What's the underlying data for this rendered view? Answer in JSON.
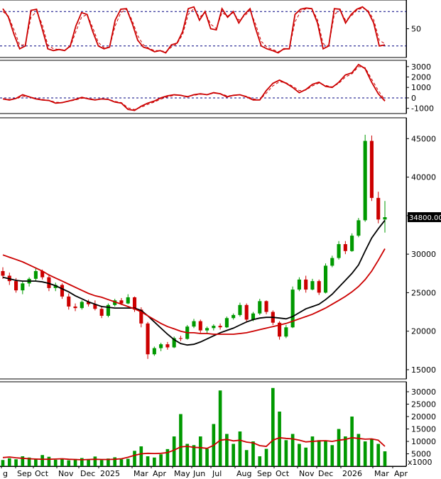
{
  "chart_data": [
    {
      "type": "line",
      "panel": "stochastic-oscillator",
      "title": "",
      "yticks": [
        50
      ],
      "ylim": [
        0,
        100
      ],
      "reference_lines": [
        20,
        80
      ],
      "series": [
        {
          "color": "#cc0000",
          "style": "solid",
          "values": [
            85,
            70,
            40,
            15,
            20,
            82,
            84,
            50,
            15,
            12,
            14,
            12,
            20,
            55,
            78,
            75,
            45,
            20,
            15,
            18,
            65,
            84,
            85,
            60,
            30,
            18,
            15,
            10,
            12,
            8,
            22,
            25,
            45,
            85,
            88,
            65,
            80,
            50,
            48,
            85,
            70,
            80,
            60,
            75,
            85,
            50,
            20,
            15,
            12,
            8,
            15,
            15,
            75,
            84,
            86,
            85,
            60,
            15,
            20,
            85,
            84,
            60,
            75,
            84,
            88,
            80,
            60,
            20,
            22
          ]
        },
        {
          "color": "#cc0000",
          "style": "dashed",
          "values": [
            80,
            72,
            48,
            22,
            22,
            70,
            80,
            58,
            22,
            15,
            14,
            13,
            18,
            45,
            70,
            75,
            52,
            26,
            17,
            18,
            55,
            78,
            84,
            65,
            38,
            22,
            16,
            12,
            12,
            10,
            18,
            24,
            40,
            75,
            85,
            70,
            78,
            58,
            50,
            78,
            72,
            78,
            65,
            72,
            82,
            58,
            28,
            18,
            14,
            10,
            14,
            15,
            62,
            80,
            85,
            85,
            66,
            24,
            20,
            75,
            82,
            65,
            72,
            82,
            86,
            82,
            66,
            30,
            24
          ]
        }
      ]
    },
    {
      "type": "line",
      "panel": "macd",
      "title": "",
      "yticks": [
        3000,
        2000,
        1000,
        0,
        -1000
      ],
      "ylim": [
        -1500,
        3600
      ],
      "reference_lines": [
        0
      ],
      "series": [
        {
          "color": "#cc0000",
          "style": "solid",
          "values": [
            -100,
            -200,
            -50,
            300,
            100,
            -100,
            -200,
            -250,
            -500,
            -450,
            -300,
            -150,
            50,
            -100,
            -200,
            -100,
            -150,
            -400,
            -500,
            -1100,
            -1200,
            -800,
            -500,
            -300,
            0,
            200,
            300,
            250,
            100,
            300,
            400,
            300,
            500,
            400,
            100,
            250,
            300,
            100,
            -200,
            -200,
            700,
            1400,
            1700,
            1400,
            1000,
            500,
            800,
            1300,
            1500,
            1100,
            1000,
            1500,
            2200,
            2400,
            3200,
            2800,
            1500,
            400,
            -300
          ]
        },
        {
          "color": "#cc0000",
          "style": "dashed",
          "values": [
            -80,
            -150,
            -90,
            150,
            120,
            -50,
            -150,
            -220,
            -420,
            -430,
            -330,
            -200,
            -30,
            -60,
            -160,
            -120,
            -140,
            -330,
            -450,
            -950,
            -1120,
            -900,
            -620,
            -400,
            -120,
            100,
            250,
            260,
            150,
            250,
            350,
            320,
            450,
            420,
            200,
            230,
            280,
            150,
            -100,
            -180,
            450,
            1150,
            1550,
            1450,
            1120,
            700,
            750,
            1150,
            1420,
            1200,
            1050,
            1380,
            2000,
            2300,
            3000,
            2900,
            1800,
            700,
            -200
          ]
        }
      ]
    },
    {
      "type": "candlestick",
      "panel": "price",
      "title": "",
      "yticks": [
        45000,
        40000,
        35000,
        30000,
        25000,
        20000,
        15000
      ],
      "ylim": [
        13800,
        47700
      ],
      "last_price_label": "34800.00",
      "candles": [
        [
          27800,
          28300,
          26800,
          27200
        ],
        [
          27200,
          27600,
          26000,
          26500
        ],
        [
          26500,
          26900,
          25000,
          25300
        ],
        [
          25300,
          26500,
          24800,
          26200
        ],
        [
          26200,
          27000,
          25800,
          26800
        ],
        [
          26800,
          28200,
          26500,
          27800
        ],
        [
          27800,
          28000,
          26700,
          27000
        ],
        [
          27000,
          27400,
          25200,
          25600
        ],
        [
          25600,
          26300,
          25200,
          26000
        ],
        [
          26000,
          26200,
          24200,
          24500
        ],
        [
          24500,
          24900,
          22800,
          23200
        ],
        [
          23200,
          23600,
          22600,
          23000
        ],
        [
          23000,
          24000,
          22800,
          23800
        ],
        [
          23800,
          24100,
          23200,
          23500
        ],
        [
          23500,
          24000,
          22700,
          22900
        ],
        [
          22900,
          23300,
          21700,
          22000
        ],
        [
          22000,
          23600,
          21800,
          23400
        ],
        [
          23400,
          24200,
          23200,
          24000
        ],
        [
          24000,
          24300,
          23400,
          23600
        ],
        [
          23600,
          24800,
          23500,
          24400
        ],
        [
          24400,
          24500,
          22500,
          22800
        ],
        [
          22800,
          23100,
          20500,
          21000
        ],
        [
          21000,
          21200,
          16400,
          17000
        ],
        [
          17000,
          18000,
          16800,
          17800
        ],
        [
          17800,
          18500,
          17400,
          18300
        ],
        [
          18300,
          18600,
          17600,
          17900
        ],
        [
          17900,
          19300,
          17800,
          19100
        ],
        [
          19100,
          19400,
          18700,
          19000
        ],
        [
          19000,
          20800,
          18900,
          20600
        ],
        [
          20600,
          21600,
          20400,
          21300
        ],
        [
          21300,
          21500,
          19800,
          20100
        ],
        [
          20100,
          20600,
          19700,
          20400
        ],
        [
          20400,
          20900,
          20100,
          20700
        ],
        [
          20700,
          21000,
          20200,
          20500
        ],
        [
          20500,
          21900,
          20400,
          21700
        ],
        [
          21700,
          22300,
          21500,
          22100
        ],
        [
          22100,
          23700,
          21900,
          23400
        ],
        [
          23400,
          23600,
          21200,
          21500
        ],
        [
          21500,
          22500,
          21300,
          22300
        ],
        [
          22300,
          24200,
          22100,
          23900
        ],
        [
          23900,
          24000,
          22200,
          22500
        ],
        [
          22500,
          22700,
          20800,
          21100
        ],
        [
          21100,
          21300,
          18900,
          19300
        ],
        [
          19300,
          20800,
          19100,
          20500
        ],
        [
          20500,
          25800,
          20400,
          25400
        ],
        [
          25400,
          27000,
          25200,
          26700
        ],
        [
          26700,
          27200,
          25000,
          25400
        ],
        [
          25400,
          26800,
          25300,
          26500
        ],
        [
          26500,
          26700,
          24700,
          25000
        ],
        [
          25000,
          28800,
          24900,
          28500
        ],
        [
          28500,
          29800,
          28300,
          29500
        ],
        [
          29500,
          31700,
          29300,
          31300
        ],
        [
          31300,
          31700,
          30000,
          30400
        ],
        [
          30400,
          32700,
          30300,
          32400
        ],
        [
          32400,
          34700,
          32200,
          34400
        ],
        [
          34400,
          45500,
          34200,
          44700
        ],
        [
          44700,
          45400,
          36900,
          37300
        ],
        [
          37300,
          38100,
          34000,
          34500
        ],
        [
          34500,
          36900,
          32800,
          34800
        ]
      ],
      "moving_averages": [
        {
          "color": "#000000",
          "values": [
            27000,
            26800,
            26600,
            26500,
            26500,
            26500,
            26400,
            26200,
            25900,
            25500,
            25100,
            24600,
            24200,
            23800,
            23500,
            23200,
            23100,
            23000,
            23000,
            23000,
            23000,
            22700,
            22000,
            21200,
            20400,
            19600,
            18900,
            18400,
            18200,
            18300,
            18600,
            19000,
            19400,
            19800,
            20100,
            20400,
            20800,
            21200,
            21500,
            21700,
            21800,
            21800,
            21700,
            21600,
            21900,
            22400,
            22900,
            23200,
            23500,
            24100,
            24800,
            25700,
            26600,
            27500,
            28600,
            30400,
            32100,
            33300,
            34400
          ]
        },
        {
          "color": "#cc0000",
          "values": [
            29900,
            29600,
            29300,
            29000,
            28600,
            28200,
            27800,
            27300,
            26900,
            26500,
            26100,
            25700,
            25300,
            24900,
            24600,
            24400,
            24100,
            23800,
            23500,
            23200,
            22900,
            22500,
            22000,
            21500,
            21000,
            20600,
            20300,
            20000,
            19800,
            19800,
            19700,
            19700,
            19600,
            19600,
            19600,
            19600,
            19700,
            19800,
            20000,
            20200,
            20400,
            20600,
            20800,
            21000,
            21300,
            21600,
            21900,
            22200,
            22600,
            23000,
            23500,
            24000,
            24500,
            25100,
            25800,
            26700,
            27800,
            29200,
            30700
          ]
        }
      ]
    },
    {
      "type": "bar",
      "panel": "volume",
      "title": "",
      "ylabel": "x1000",
      "yticks": [
        30000,
        25000,
        20000,
        15000,
        10000,
        5000
      ],
      "ylim": [
        0,
        34000
      ],
      "values": [
        2500,
        3200,
        2800,
        4000,
        3500,
        3000,
        4500,
        3800,
        2600,
        3100,
        2400,
        2900,
        3300,
        2700,
        3900,
        2500,
        3100,
        3600,
        2800,
        3000,
        6200,
        8000,
        4000,
        3500,
        4800,
        6900,
        12000,
        21000,
        9000,
        8500,
        12000,
        7000,
        17000,
        30500,
        13000,
        9000,
        14000,
        6500,
        10000,
        4000,
        7000,
        31500,
        22000,
        10500,
        13000,
        9000,
        7500,
        12000,
        10500,
        10000,
        8500,
        15000,
        12000,
        20000,
        13000,
        10000,
        11000,
        9000,
        6000
      ],
      "ma_values": [
        3500,
        3700,
        3400,
        3200,
        3000,
        2900,
        2800,
        2800,
        2900,
        3000,
        2800,
        2700,
        2600,
        2700,
        2800,
        2700,
        2700,
        2800,
        3000,
        3600,
        4400,
        5000,
        5200,
        5100,
        5200,
        5500,
        6500,
        7800,
        8000,
        7600,
        7500,
        7200,
        8400,
        10500,
        10800,
        10200,
        10500,
        9700,
        9400,
        8300,
        8000,
        10500,
        11500,
        11200,
        11000,
        10500,
        9800,
        10000,
        10200,
        10300,
        10000,
        10500,
        10800,
        11500,
        11200,
        10900,
        11000,
        10500,
        8000
      ],
      "bar_color": "#009900",
      "ma_color": "#cc0000"
    }
  ],
  "x_axis": {
    "labels": [
      "g",
      "Sep",
      "Oct",
      "Nov",
      "Dec",
      "2025",
      "Mar",
      "Apr",
      "May",
      "Jun",
      "Jul",
      "Aug",
      "Sep",
      "Oct",
      "Nov",
      "Dec",
      "2026",
      "Mar",
      "Apr"
    ]
  },
  "colors": {
    "up": "#009900",
    "down": "#cc0000",
    "ma_short": "#000000",
    "ma_long": "#cc0000",
    "grid": "#000080"
  }
}
